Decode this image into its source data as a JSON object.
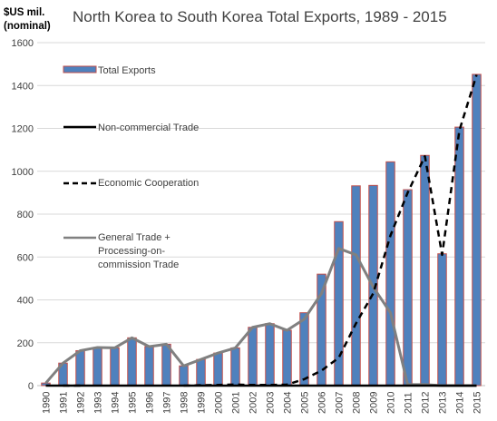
{
  "chart_data": {
    "type": "bar",
    "title": "North Korea to South Korea Total Exports, 1989 - 2015",
    "ylabel_line1": "$US mil.",
    "ylabel_line2": "(nominal)",
    "ylim": [
      0,
      1600
    ],
    "yticks": [
      0,
      200,
      400,
      600,
      800,
      1000,
      1200,
      1400,
      1600
    ],
    "categories": [
      "1990",
      "1991",
      "1992",
      "1993",
      "1994",
      "1995",
      "1996",
      "1997",
      "1998",
      "1999",
      "2000",
      "2001",
      "2002",
      "2003",
      "2004",
      "2005",
      "2006",
      "2007",
      "2008",
      "2009",
      "2010",
      "2011",
      "2012",
      "2013",
      "2014",
      "2015"
    ],
    "grid": true,
    "legend_placement": "left-inside",
    "series": [
      {
        "name": "Total Exports",
        "kind": "bar",
        "fill": "#4f81bd",
        "stroke": "#c0504d",
        "values": [
          12,
          105,
          163,
          178,
          176,
          223,
          182,
          193,
          92,
          122,
          152,
          176,
          272,
          289,
          258,
          340,
          520,
          765,
          932,
          934,
          1044,
          914,
          1074,
          615,
          1206,
          1452
        ]
      },
      {
        "name": "Non-commercial Trade",
        "kind": "line",
        "stroke": "#000000",
        "dash": "solid",
        "values": [
          0,
          0,
          0,
          0,
          0,
          0,
          0,
          0,
          0,
          0,
          0,
          0,
          0,
          0,
          0,
          0,
          0,
          0,
          0,
          0,
          0,
          0,
          0,
          0,
          0,
          0
        ]
      },
      {
        "name": "Economic Cooperation",
        "kind": "line",
        "stroke": "#000000",
        "dash": "dashed",
        "values": [
          null,
          0,
          0,
          null,
          null,
          null,
          null,
          null,
          0,
          2,
          3,
          5,
          3,
          3,
          5,
          30,
          70,
          130,
          290,
          430,
          700,
          900,
          1070,
          610,
          1190,
          1450
        ]
      },
      {
        "name": "General Trade + Processing-on-commission Trade",
        "legend_lines": [
          "General Trade +",
          "Processing-on-",
          "commission Trade"
        ],
        "kind": "line",
        "stroke": "#808080",
        "dash": "solid",
        "values": [
          12,
          105,
          163,
          178,
          176,
          223,
          182,
          193,
          92,
          122,
          152,
          176,
          272,
          289,
          258,
          310,
          430,
          640,
          610,
          460,
          340,
          5,
          5,
          0,
          0,
          0
        ]
      }
    ]
  }
}
